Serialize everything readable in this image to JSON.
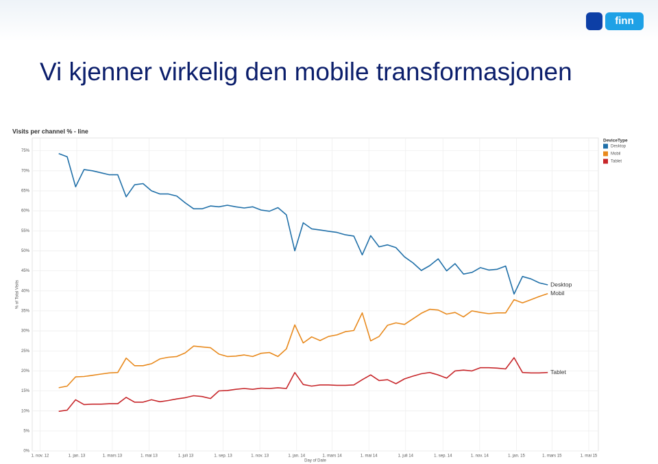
{
  "slide_title": "Vi kjenner virkelig den mobile transformasjonen",
  "logo": "finn",
  "chart_data": {
    "type": "line",
    "title": "Visits per channel % - line",
    "y_label": "% of Total Visits",
    "x_label": "Day of Date",
    "legend_title": "DeviceType",
    "legend_position": "top-right",
    "grid": true,
    "xlim": [
      "2012-10-19",
      "2015-05-17"
    ],
    "ylim": [
      0,
      78.2
    ],
    "xticks": [
      {
        "value": "2012-11-01",
        "label": "1. nov. 12"
      },
      {
        "value": "2013-01-01",
        "label": "1. jan. 13"
      },
      {
        "value": "2013-03-01",
        "label": "1. mars 13"
      },
      {
        "value": "2013-05-01",
        "label": "1. mai 13"
      },
      {
        "value": "2013-07-01",
        "label": "1. juli 13"
      },
      {
        "value": "2013-09-01",
        "label": "1. sep. 13"
      },
      {
        "value": "2013-11-01",
        "label": "1. nov. 13"
      },
      {
        "value": "2014-01-01",
        "label": "1. jan. 14"
      },
      {
        "value": "2014-03-01",
        "label": "1. mars 14"
      },
      {
        "value": "2014-05-01",
        "label": "1. mai 14"
      },
      {
        "value": "2014-07-01",
        "label": "1. juli 14"
      },
      {
        "value": "2014-09-01",
        "label": "1. sep. 14"
      },
      {
        "value": "2014-11-01",
        "label": "1. nov. 14"
      },
      {
        "value": "2015-01-01",
        "label": "1. jan. 15"
      },
      {
        "value": "2015-03-01",
        "label": "1. mars 15"
      },
      {
        "value": "2015-05-01",
        "label": "1. mai 15"
      }
    ],
    "yticks": [
      {
        "value": 0,
        "label": "0%"
      },
      {
        "value": 5,
        "label": "5%"
      },
      {
        "value": 10,
        "label": "10%"
      },
      {
        "value": 15,
        "label": "15%"
      },
      {
        "value": 20,
        "label": "20%"
      },
      {
        "value": 25,
        "label": "25%"
      },
      {
        "value": 30,
        "label": "30%"
      },
      {
        "value": 35,
        "label": "35%"
      },
      {
        "value": 40,
        "label": "40%"
      },
      {
        "value": 45,
        "label": "45%"
      },
      {
        "value": 50,
        "label": "50%"
      },
      {
        "value": 55,
        "label": "55%"
      },
      {
        "value": 60,
        "label": "60%"
      },
      {
        "value": 65,
        "label": "65%"
      },
      {
        "value": 70,
        "label": "70%"
      },
      {
        "value": 75,
        "label": "75%"
      }
    ],
    "x": [
      "2012-12-02",
      "2012-12-16",
      "2012-12-30",
      "2013-01-13",
      "2013-01-27",
      "2013-02-10",
      "2013-02-24",
      "2013-03-10",
      "2013-03-24",
      "2013-04-07",
      "2013-04-21",
      "2013-05-05",
      "2013-05-19",
      "2013-06-02",
      "2013-06-16",
      "2013-06-30",
      "2013-07-14",
      "2013-07-28",
      "2013-08-11",
      "2013-08-25",
      "2013-09-08",
      "2013-09-22",
      "2013-10-06",
      "2013-10-20",
      "2013-11-03",
      "2013-11-17",
      "2013-12-01",
      "2013-12-15",
      "2013-12-29",
      "2014-01-12",
      "2014-01-26",
      "2014-02-09",
      "2014-02-23",
      "2014-03-09",
      "2014-03-23",
      "2014-04-06",
      "2014-04-20",
      "2014-05-04",
      "2014-05-18",
      "2014-06-01",
      "2014-06-15",
      "2014-06-29",
      "2014-07-13",
      "2014-07-27",
      "2014-08-10",
      "2014-08-24",
      "2014-09-07",
      "2014-09-21",
      "2014-10-05",
      "2014-10-19",
      "2014-11-02",
      "2014-11-16",
      "2014-11-30",
      "2014-12-14",
      "2014-12-28",
      "2015-01-11",
      "2015-01-25",
      "2015-02-08",
      "2015-02-22"
    ],
    "series": [
      {
        "name": "Desktop",
        "color": "#1f6fa8",
        "values": [
          74.3,
          73.5,
          66,
          70.3,
          70,
          69.5,
          69,
          69,
          63.5,
          66.5,
          66.8,
          65,
          64.2,
          64.2,
          63.7,
          62,
          60.5,
          60.5,
          61.2,
          61,
          61.4,
          61,
          60.7,
          61,
          60.2,
          59.9,
          60.8,
          59,
          50,
          57,
          55.5,
          55.2,
          54.9,
          54.6,
          54,
          53.7,
          49,
          53.8,
          51,
          51.5,
          50.8,
          48.5,
          47,
          45.1,
          46.3,
          48,
          45,
          46.8,
          44.2,
          44.6,
          45.8,
          45.2,
          45.4,
          46.2,
          39.2,
          43.6,
          43,
          42,
          41.5
        ]
      },
      {
        "name": "Mobil",
        "color": "#e8891c",
        "values": [
          15.8,
          16.2,
          18.5,
          18.6,
          18.9,
          19.2,
          19.5,
          19.6,
          23.2,
          21.3,
          21.3,
          21.8,
          23,
          23.4,
          23.6,
          24.5,
          26.2,
          26,
          25.8,
          24.2,
          23.6,
          23.7,
          24,
          23.6,
          24.4,
          24.6,
          23.6,
          25.5,
          31.5,
          27,
          28.5,
          27.6,
          28.6,
          29,
          29.8,
          30.1,
          34.5,
          27.5,
          28.6,
          31.4,
          32,
          31.6,
          33,
          34.4,
          35.4,
          35.2,
          34.2,
          34.6,
          33.5,
          35,
          34.6,
          34.3,
          34.5,
          34.5,
          37.8,
          37,
          37.8,
          38.6,
          39.3
        ]
      },
      {
        "name": "Tablet",
        "color": "#c7262a",
        "values": [
          9.9,
          10.2,
          12.8,
          11.6,
          11.7,
          11.7,
          11.8,
          11.8,
          13.4,
          12.2,
          12.2,
          12.8,
          12.3,
          12.6,
          13,
          13.3,
          13.8,
          13.6,
          13.1,
          15,
          15.1,
          15.4,
          15.6,
          15.4,
          15.7,
          15.6,
          15.8,
          15.6,
          19.6,
          16.6,
          16.2,
          16.5,
          16.5,
          16.4,
          16.4,
          16.5,
          17.8,
          19,
          17.6,
          17.8,
          16.8,
          18,
          18.7,
          19.3,
          19.6,
          19,
          18.2,
          20,
          20.2,
          20,
          20.8,
          20.8,
          20.7,
          20.5,
          23.3,
          19.6,
          19.5,
          19.5,
          19.6
        ]
      }
    ]
  }
}
